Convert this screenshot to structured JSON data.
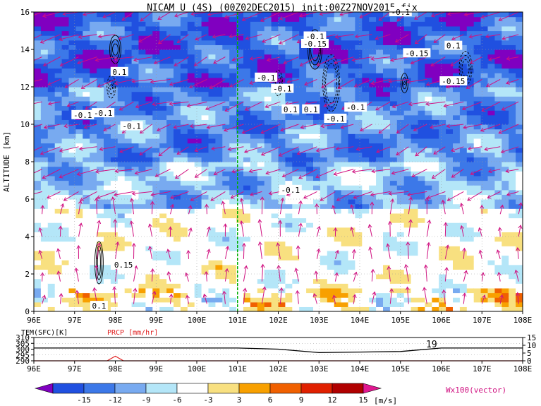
{
  "title": "NICAM U (4S) (00Z02DEC2015) init:00Z27NOV2015 fix",
  "main_panel": {
    "ylabel": "ALTITUDE [km]",
    "y_ticks": [
      "0",
      "2",
      "4",
      "6",
      "8",
      "10",
      "12",
      "14",
      "16"
    ],
    "x_ticks": [
      "96E",
      "97E",
      "98E",
      "99E",
      "100E",
      "101E",
      "102E",
      "103E",
      "104E",
      "105E",
      "106E",
      "107E",
      "108E"
    ],
    "contour_labels": [
      {
        "text": "-0.1",
        "lon": 102.9,
        "alt": 14.7
      },
      {
        "text": "-0.15",
        "lon": 102.9,
        "alt": 14.3
      },
      {
        "text": "-0.1",
        "lon": 105.0,
        "alt": 16.0
      },
      {
        "text": "-0.15",
        "lon": 105.4,
        "alt": 13.8
      },
      {
        "text": "0.1",
        "lon": 106.3,
        "alt": 14.2
      },
      {
        "text": "-0.15",
        "lon": 106.3,
        "alt": 12.3
      },
      {
        "text": "0.1",
        "lon": 98.1,
        "alt": 12.8
      },
      {
        "text": "-0.1",
        "lon": 101.7,
        "alt": 12.5
      },
      {
        "text": "-0.1",
        "lon": 102.1,
        "alt": 11.9
      },
      {
        "text": "0.1",
        "lon": 102.3,
        "alt": 10.8
      },
      {
        "text": "0.1",
        "lon": 102.8,
        "alt": 10.8
      },
      {
        "text": "-0.1",
        "lon": 103.9,
        "alt": 10.9
      },
      {
        "text": "-0.1",
        "lon": 103.4,
        "alt": 10.3
      },
      {
        "text": "-0.1",
        "lon": 97.2,
        "alt": 10.5
      },
      {
        "text": "-0.1",
        "lon": 97.7,
        "alt": 10.6
      },
      {
        "text": "-0.1",
        "lon": 98.4,
        "alt": 9.9
      },
      {
        "text": "-0.1",
        "lon": 102.3,
        "alt": 6.5
      },
      {
        "text": "0.15",
        "lon": 98.2,
        "alt": 2.5
      },
      {
        "text": "0.1",
        "lon": 97.6,
        "alt": 0.3
      }
    ],
    "marker_lon": 101.0
  },
  "lower_panel": {
    "left_title": "TEM(SFC)[K]",
    "right_title": "PRCP [mm/hr]",
    "left_ticks": [
      "310",
      "305",
      "300",
      "295",
      "290"
    ],
    "right_ticks": [
      "15",
      "10",
      "5",
      "0"
    ],
    "x_ticks": [
      "96E",
      "97E",
      "98E",
      "99E",
      "100E",
      "101E",
      "102E",
      "103E",
      "104E",
      "105E",
      "106E",
      "107E",
      "108E"
    ],
    "annotation": "19",
    "temp_color": "#000000",
    "prcp_color": "#e02020"
  },
  "colorbar": {
    "ticks": [
      "-15",
      "-12",
      "-9",
      "-6",
      "-3",
      "3",
      "6",
      "9",
      "12",
      "15"
    ],
    "unit": "[m/s]",
    "colors": [
      "#8000c0",
      "#2050e0",
      "#3c78e8",
      "#78aaf0",
      "#b4e6f8",
      "#ffffff",
      "#f8e080",
      "#f8a000",
      "#f06000",
      "#e02000",
      "#b00000",
      "#e01890"
    ],
    "vector_label": "Wx100(vector)"
  },
  "chart_data": {
    "type": "heatmap",
    "title": "NICAM U (4S) (00Z02DEC2015) init:00Z27NOV2015 fix",
    "xlabel": "",
    "ylabel": "ALTITUDE [km]",
    "xlim": [
      96,
      108
    ],
    "ylim": [
      0,
      16
    ],
    "description_levels": [
      -15,
      -12,
      -9,
      -6,
      -3,
      3,
      6,
      9,
      12,
      15
    ],
    "u_bands_by_altitude": [
      {
        "alt_range": [
          0,
          5.5
        ],
        "u_typical": 0
      },
      {
        "alt_range": [
          5.5,
          8
        ],
        "u_typical": -6
      },
      {
        "alt_range": [
          8,
          12
        ],
        "u_typical": -9
      },
      {
        "alt_range": [
          12,
          16
        ],
        "u_typical": -12
      }
    ],
    "surface_temperature_K": {
      "lon": [
        96,
        97,
        98,
        99,
        100,
        101,
        102,
        103,
        104,
        105,
        106,
        107,
        108
      ],
      "value": [
        301,
        301,
        301,
        301,
        301,
        301,
        300,
        297,
        297.5,
        298,
        301,
        301,
        301
      ]
    },
    "precipitation_mm_hr": {
      "lon": [
        96,
        97,
        97.8,
        98,
        98.2,
        99,
        100,
        101,
        102,
        103,
        104,
        105,
        106,
        107,
        108
      ],
      "value": [
        0,
        0,
        0,
        3,
        0,
        0,
        0,
        0,
        0,
        0,
        0,
        0,
        0,
        0,
        0
      ]
    }
  }
}
